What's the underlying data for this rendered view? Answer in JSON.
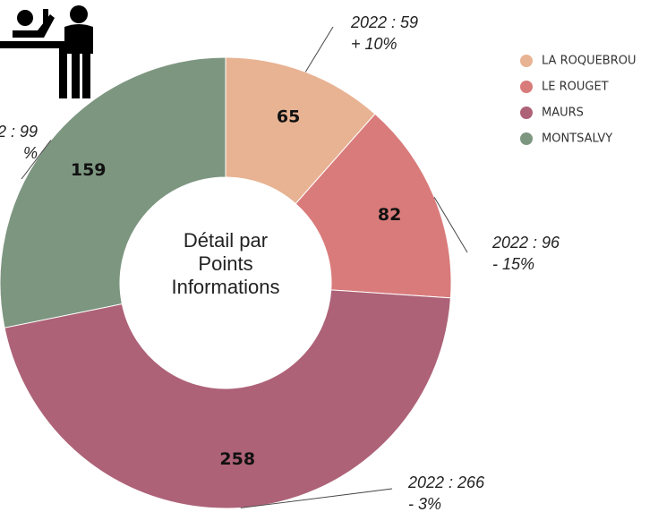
{
  "chart_data": {
    "type": "pie",
    "center_label": [
      "Détail par",
      "Points",
      "Informations"
    ],
    "categories": [
      "LA ROQUEBROU",
      "LE ROUGET",
      "MAURS",
      "MONTSALVY"
    ],
    "values": [
      65,
      82,
      258,
      159
    ],
    "colors": [
      "#e8b393",
      "#d97b7b",
      "#ad6277",
      "#7d9680"
    ],
    "annotations": [
      [
        "2022 : 59",
        "+ 10%"
      ],
      [
        "2022 : 96",
        "- 15%"
      ],
      [
        "2022 : 266",
        "- 3%"
      ],
      [
        "2 : 99",
        "%"
      ]
    ],
    "legend": "top-right"
  }
}
